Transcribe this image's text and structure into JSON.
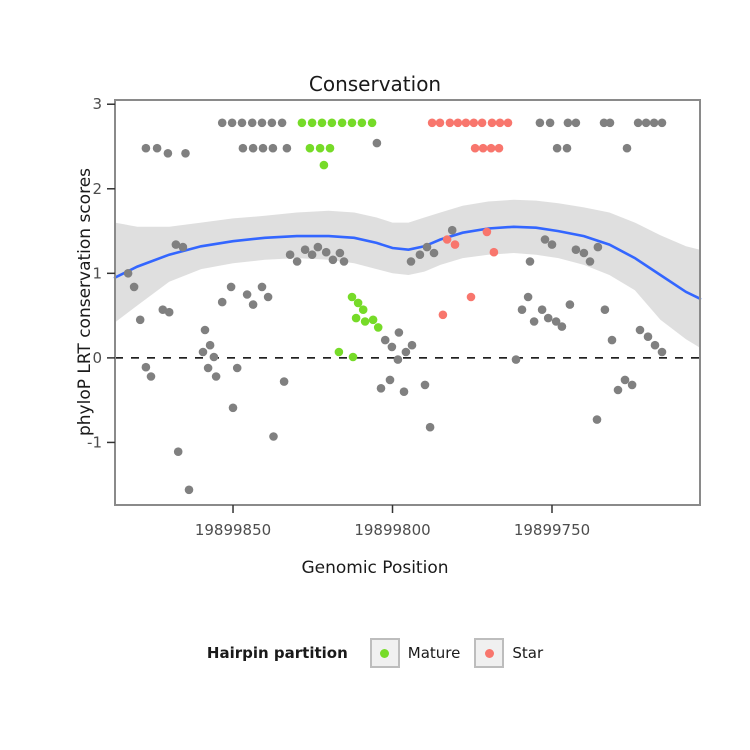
{
  "figure": {
    "title": "Conservation",
    "x_label": "Genomic Position",
    "y_label": "phyloP LRT conservation scores"
  },
  "legend": {
    "title": "Hairpin partition",
    "items": [
      {
        "label": "Mature",
        "color": "#76DB28"
      },
      {
        "label": "Star",
        "color": "#F8766D"
      }
    ]
  },
  "colors": {
    "point_gray": "#808080",
    "mature_green": "#76DB28",
    "star_salmon": "#F8766D",
    "smooth_blue": "#3366FF",
    "ribbon_gray": "#9B9B9B",
    "panel_border": "#8A8A8A",
    "zero_line": "#000000"
  },
  "chart_data": {
    "type": "scatter",
    "title": "Conservation",
    "xlabel": "Genomic Position",
    "ylabel": "phyloP LRT conservation scores",
    "x_reversed": true,
    "xlim": [
      19899887,
      19899703.6
    ],
    "ylim": [
      -1.74,
      3.05
    ],
    "x_ticks": [
      "19899850",
      "19899800",
      "19899750"
    ],
    "x_tick_values": [
      19899850,
      19899800,
      19899750
    ],
    "y_ticks": [
      -1,
      0,
      1,
      2,
      3
    ],
    "hline": {
      "y": 0,
      "style": "dashed",
      "color": "#000000"
    },
    "series": [
      {
        "name": "Other",
        "color": "#808080",
        "points": [
          [
            19899853.4,
            2.78
          ],
          [
            19899850.3,
            2.78
          ],
          [
            19899847.2,
            2.78
          ],
          [
            19899844.0,
            2.78
          ],
          [
            19899840.9,
            2.78
          ],
          [
            19899837.8,
            2.78
          ],
          [
            19899834.6,
            2.78
          ],
          [
            19899753.8,
            2.78
          ],
          [
            19899750.6,
            2.78
          ],
          [
            19899745.0,
            2.78
          ],
          [
            19899742.5,
            2.78
          ],
          [
            19899733.7,
            2.78
          ],
          [
            19899731.8,
            2.78
          ],
          [
            19899723.0,
            2.78
          ],
          [
            19899720.5,
            2.78
          ],
          [
            19899718.0,
            2.78
          ],
          [
            19899715.5,
            2.78
          ],
          [
            19899877.3,
            2.48
          ],
          [
            19899873.8,
            2.48
          ],
          [
            19899870.4,
            2.42
          ],
          [
            19899864.9,
            2.42
          ],
          [
            19899846.9,
            2.48
          ],
          [
            19899843.7,
            2.48
          ],
          [
            19899840.6,
            2.48
          ],
          [
            19899837.5,
            2.48
          ],
          [
            19899833.1,
            2.48
          ],
          [
            19899748.4,
            2.48
          ],
          [
            19899745.3,
            2.48
          ],
          [
            19899726.5,
            2.48
          ],
          [
            19899804.9,
            2.54
          ],
          [
            19899882.9,
            1.0
          ],
          [
            19899881.0,
            0.84
          ],
          [
            19899879.1,
            0.45
          ],
          [
            19899877.3,
            -0.11
          ],
          [
            19899875.7,
            -0.22
          ],
          [
            19899872.0,
            0.57
          ],
          [
            19899870.0,
            0.54
          ],
          [
            19899867.9,
            1.34
          ],
          [
            19899865.7,
            1.31
          ],
          [
            19899867.2,
            -1.11
          ],
          [
            19899863.8,
            -1.56
          ],
          [
            19899858.8,
            0.33
          ],
          [
            19899859.4,
            0.07
          ],
          [
            19899857.2,
            0.15
          ],
          [
            19899856.0,
            0.01
          ],
          [
            19899857.8,
            -0.12
          ],
          [
            19899855.3,
            -0.22
          ],
          [
            19899853.4,
            0.66
          ],
          [
            19899850.6,
            0.84
          ],
          [
            19899850.0,
            -0.59
          ],
          [
            19899848.7,
            -0.12
          ],
          [
            19899845.6,
            0.75
          ],
          [
            19899843.7,
            0.63
          ],
          [
            19899840.9,
            0.84
          ],
          [
            19899839.0,
            0.72
          ],
          [
            19899837.3,
            -0.93
          ],
          [
            19899834.0,
            -0.28
          ],
          [
            19899832.1,
            1.22
          ],
          [
            19899829.9,
            1.14
          ],
          [
            19899827.4,
            1.28
          ],
          [
            19899825.2,
            1.22
          ],
          [
            19899823.4,
            1.31
          ],
          [
            19899820.8,
            1.25
          ],
          [
            19899818.7,
            1.16
          ],
          [
            19899816.5,
            1.24
          ],
          [
            19899815.2,
            1.14
          ],
          [
            19899802.3,
            0.21
          ],
          [
            19899800.2,
            0.13
          ],
          [
            19899798.0,
            0.3
          ],
          [
            19899795.8,
            0.07
          ],
          [
            19899798.3,
            -0.02
          ],
          [
            19899800.8,
            -0.26
          ],
          [
            19899803.6,
            -0.36
          ],
          [
            19899796.4,
            -0.4
          ],
          [
            19899793.9,
            0.15
          ],
          [
            19899789.8,
            -0.32
          ],
          [
            19899788.2,
            -0.82
          ],
          [
            19899794.2,
            1.14
          ],
          [
            19899791.4,
            1.22
          ],
          [
            19899789.2,
            1.31
          ],
          [
            19899787.0,
            1.24
          ],
          [
            19899781.3,
            1.51
          ],
          [
            19899761.3,
            -0.02
          ],
          [
            19899759.4,
            0.57
          ],
          [
            19899757.5,
            0.72
          ],
          [
            19899755.6,
            0.43
          ],
          [
            19899756.9,
            1.14
          ],
          [
            19899753.1,
            0.57
          ],
          [
            19899751.2,
            0.47
          ],
          [
            19899748.7,
            0.43
          ],
          [
            19899746.9,
            0.37
          ],
          [
            19899744.4,
            0.63
          ],
          [
            19899752.2,
            1.4
          ],
          [
            19899750.0,
            1.34
          ],
          [
            19899742.5,
            1.28
          ],
          [
            19899740.0,
            1.24
          ],
          [
            19899738.1,
            1.14
          ],
          [
            19899735.6,
            1.31
          ],
          [
            19899733.4,
            0.57
          ],
          [
            19899731.2,
            0.21
          ],
          [
            19899729.3,
            -0.38
          ],
          [
            19899727.1,
            -0.26
          ],
          [
            19899724.9,
            -0.32
          ],
          [
            19899735.9,
            -0.73
          ],
          [
            19899722.4,
            0.33
          ],
          [
            19899719.9,
            0.25
          ],
          [
            19899717.7,
            0.15
          ],
          [
            19899715.5,
            0.07
          ]
        ]
      },
      {
        "name": "Mature",
        "color": "#76DB28",
        "points": [
          [
            19899828.4,
            2.78
          ],
          [
            19899825.2,
            2.78
          ],
          [
            19899822.1,
            2.78
          ],
          [
            19899819.0,
            2.78
          ],
          [
            19899815.8,
            2.78
          ],
          [
            19899812.7,
            2.78
          ],
          [
            19899809.6,
            2.78
          ],
          [
            19899806.4,
            2.78
          ],
          [
            19899825.9,
            2.48
          ],
          [
            19899822.7,
            2.48
          ],
          [
            19899819.6,
            2.48
          ],
          [
            19899821.5,
            2.28
          ],
          [
            19899812.7,
            0.72
          ],
          [
            19899810.8,
            0.65
          ],
          [
            19899809.2,
            0.57
          ],
          [
            19899811.4,
            0.47
          ],
          [
            19899808.6,
            0.43
          ],
          [
            19899806.1,
            0.45
          ],
          [
            19899804.5,
            0.36
          ],
          [
            19899816.8,
            0.07
          ],
          [
            19899812.4,
            0.01
          ]
        ]
      },
      {
        "name": "Star",
        "color": "#F8766D",
        "points": [
          [
            19899787.6,
            2.78
          ],
          [
            19899785.1,
            2.78
          ],
          [
            19899782.0,
            2.78
          ],
          [
            19899779.5,
            2.78
          ],
          [
            19899777.0,
            2.78
          ],
          [
            19899774.5,
            2.78
          ],
          [
            19899771.9,
            2.78
          ],
          [
            19899768.8,
            2.78
          ],
          [
            19899766.3,
            2.78
          ],
          [
            19899763.8,
            2.78
          ],
          [
            19899774.1,
            2.48
          ],
          [
            19899771.6,
            2.48
          ],
          [
            19899769.1,
            2.48
          ],
          [
            19899766.6,
            2.48
          ],
          [
            19899782.9,
            1.4
          ],
          [
            19899780.4,
            1.34
          ],
          [
            19899770.4,
            1.49
          ],
          [
            19899768.2,
            1.25
          ],
          [
            19899775.4,
            0.72
          ],
          [
            19899784.2,
            0.51
          ]
        ]
      }
    ],
    "smooth": {
      "color": "#3366FF",
      "ribbon_color": "#9B9B9B",
      "ribbon_opacity": 0.32,
      "points": [
        [
          19899887,
          0.95
        ],
        [
          19899880,
          1.08
        ],
        [
          19899870,
          1.22
        ],
        [
          19899860,
          1.32
        ],
        [
          19899850,
          1.38
        ],
        [
          19899840,
          1.42
        ],
        [
          19899830,
          1.44
        ],
        [
          19899820,
          1.44
        ],
        [
          19899812,
          1.42
        ],
        [
          19899805,
          1.36
        ],
        [
          19899800,
          1.3
        ],
        [
          19899795,
          1.28
        ],
        [
          19899790,
          1.32
        ],
        [
          19899785,
          1.4
        ],
        [
          19899778,
          1.48
        ],
        [
          19899770,
          1.53
        ],
        [
          19899762,
          1.55
        ],
        [
          19899755,
          1.54
        ],
        [
          19899748,
          1.5
        ],
        [
          19899740,
          1.44
        ],
        [
          19899732,
          1.34
        ],
        [
          19899724,
          1.18
        ],
        [
          19899716,
          0.98
        ],
        [
          19899708,
          0.78
        ],
        [
          19899703.6,
          0.7
        ]
      ],
      "ribbon": [
        [
          19899887,
          0.42,
          1.6
        ],
        [
          19899880,
          0.62,
          1.55
        ],
        [
          19899870,
          0.9,
          1.55
        ],
        [
          19899860,
          1.05,
          1.6
        ],
        [
          19899850,
          1.12,
          1.65
        ],
        [
          19899840,
          1.16,
          1.68
        ],
        [
          19899830,
          1.18,
          1.72
        ],
        [
          19899820,
          1.16,
          1.74
        ],
        [
          19899812,
          1.12,
          1.72
        ],
        [
          19899805,
          1.05,
          1.66
        ],
        [
          19899800,
          1.0,
          1.6
        ],
        [
          19899795,
          0.98,
          1.6
        ],
        [
          19899790,
          1.02,
          1.66
        ],
        [
          19899785,
          1.1,
          1.72
        ],
        [
          19899778,
          1.18,
          1.8
        ],
        [
          19899770,
          1.22,
          1.85
        ],
        [
          19899762,
          1.24,
          1.87
        ],
        [
          19899755,
          1.22,
          1.86
        ],
        [
          19899748,
          1.18,
          1.83
        ],
        [
          19899740,
          1.1,
          1.78
        ],
        [
          19899732,
          0.98,
          1.72
        ],
        [
          19899724,
          0.8,
          1.6
        ],
        [
          19899716,
          0.45,
          1.45
        ],
        [
          19899708,
          0.22,
          1.32
        ],
        [
          19899703.6,
          0.12,
          1.28
        ]
      ]
    }
  }
}
